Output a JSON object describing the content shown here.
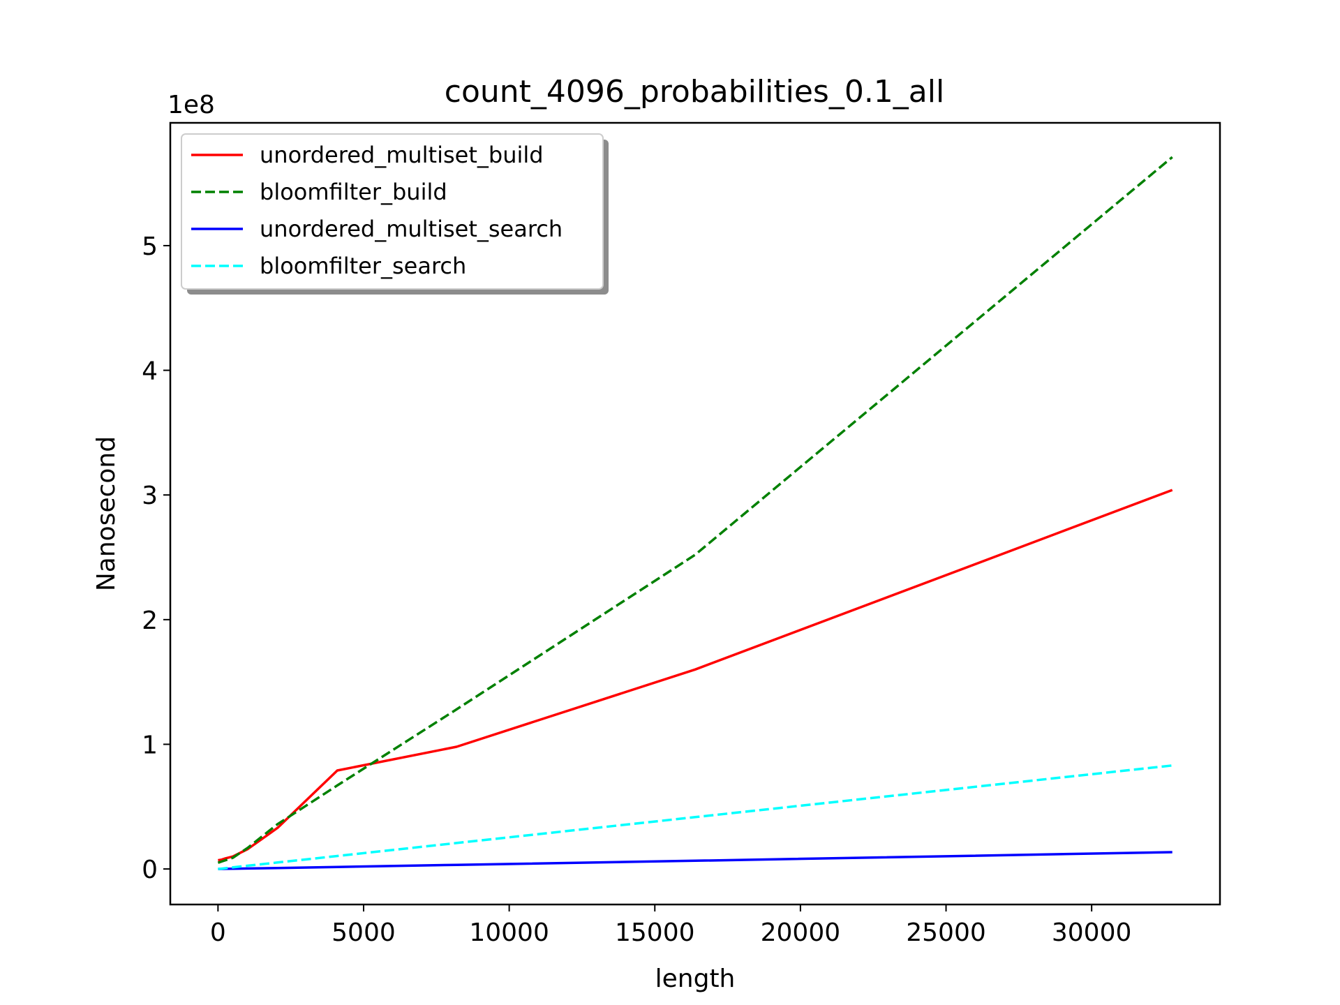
{
  "chart_data": {
    "type": "line",
    "title": "count_4096_probabilities_0.1_all",
    "xlabel": "length",
    "ylabel": "Nanosecond",
    "y_offset_label": "1e8",
    "xlim": [
      -1638,
      34406
    ],
    "ylim": [
      -0.285,
      5.985
    ],
    "x_ticks": [
      0,
      5000,
      10000,
      15000,
      20000,
      25000,
      30000
    ],
    "x_tick_labels": [
      "0",
      "5000",
      "10000",
      "15000",
      "20000",
      "25000",
      "30000"
    ],
    "y_ticks": [
      0,
      1,
      2,
      3,
      4,
      5
    ],
    "y_tick_labels": [
      "0",
      "1",
      "2",
      "3",
      "4",
      "5"
    ],
    "grid": false,
    "legend_position": "top-left",
    "x": [
      1,
      128,
      256,
      512,
      1024,
      2048,
      4096,
      8192,
      16384,
      32768
    ],
    "series": [
      {
        "name": "unordered_multiset_build",
        "color": "#ff0000",
        "style": "solid",
        "values": [
          0.07,
          0.075,
          0.085,
          0.1,
          0.16,
          0.33,
          0.79,
          0.98,
          1.6,
          3.04
        ]
      },
      {
        "name": "bloomfilter_build",
        "color": "#008000",
        "style": "dashed",
        "values": [
          0.05,
          0.06,
          0.07,
          0.09,
          0.17,
          0.36,
          0.67,
          1.28,
          2.52,
          5.71
        ]
      },
      {
        "name": "unordered_multiset_search",
        "color": "#0000ff",
        "style": "solid",
        "values": [
          0.0,
          0.0005,
          0.001,
          0.002,
          0.004,
          0.008,
          0.016,
          0.033,
          0.066,
          0.135
        ]
      },
      {
        "name": "bloomfilter_search",
        "color": "#00ffff",
        "style": "dashed",
        "values": [
          0.0,
          0.003,
          0.006,
          0.013,
          0.026,
          0.052,
          0.104,
          0.208,
          0.416,
          0.83
        ]
      }
    ]
  }
}
